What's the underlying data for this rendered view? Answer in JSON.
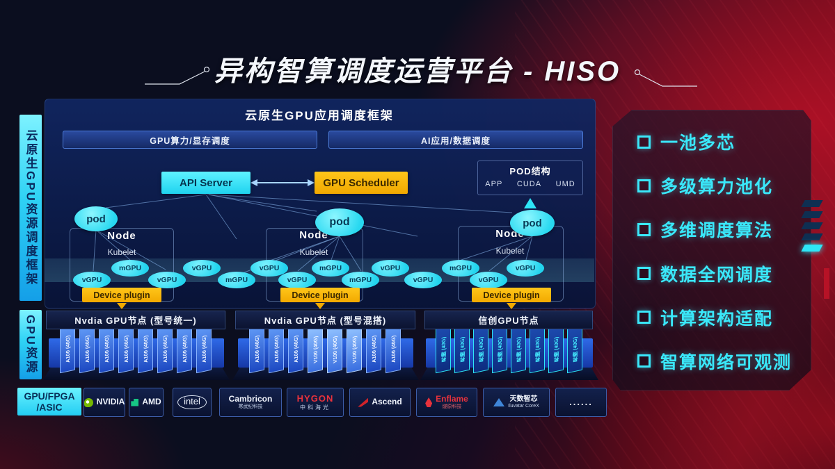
{
  "title": "异构智算调度运营平台 - HISO",
  "left_rails": {
    "top": "云原生GPU资源调度框架",
    "bottom": "GPU资源"
  },
  "framework": {
    "header": "云原生GPU应用调度框架",
    "scheduler_bars": [
      {
        "label": "GPU算力/显存调度"
      },
      {
        "label": "AI应用/数据调度"
      }
    ],
    "api_server": "API Server",
    "gpu_scheduler": "GPU Scheduler",
    "pod_structure": {
      "title": "POD结构",
      "items": [
        "APP",
        "CUDA",
        "UMD"
      ]
    },
    "nodes": [
      {
        "pod": "pod",
        "title": "Node",
        "agent": "Kubelet",
        "plugin": "Device plugin"
      },
      {
        "pod": "pod",
        "title": "Node",
        "agent": "Kubelet",
        "plugin": "Device plugin"
      },
      {
        "pod": "pod",
        "title": "Node",
        "agent": "Kubelet",
        "plugin": "Device plugin"
      }
    ],
    "gpu_instances": [
      "vGPU",
      "mGPU",
      "vGPU",
      "vGPU",
      "mGPU",
      "vGPU",
      "vGPU",
      "mGPU",
      "mGPU",
      "vGPU",
      "vGPU",
      "mGPU",
      "vGPU",
      "vGPU"
    ]
  },
  "node_groups": [
    {
      "bar_label": "Nvdia GPU节点 (型号统一)",
      "cards": [
        "A100 (40G)",
        "A100 (40G)",
        "A100 (40G)",
        "A100 (40G)",
        "A100 (40G)",
        "A100 (40G)",
        "A100 (40G)",
        "A100 (40G)"
      ],
      "style": "blue"
    },
    {
      "bar_label": "Nvdia GPU节点 (型号混搭)",
      "cards": [
        "A100 (40G)",
        "A100 (40G)",
        "A100 (40G)",
        "V100 (40G)",
        "V100 (40G)",
        "V100 (40G)",
        "A100 (40G)",
        "A100 (40G)"
      ],
      "style": "blue"
    },
    {
      "bar_label": "信创GPU节点",
      "cards": [
        "昇腾 (40G)",
        "昇腾 (40G)",
        "昇腾 (40G)",
        "昇腾 (40G)",
        "昇腾 (40G)",
        "昇腾 (40G)",
        "昇腾 (40G)",
        "昇腾 (40G)"
      ],
      "style": "cyan"
    }
  ],
  "vendor_bar": {
    "label_line1": "GPU/FPGA",
    "label_line2": "/ASIC",
    "vendors": [
      {
        "id": "nvidia",
        "name": "NVIDIA"
      },
      {
        "id": "amd",
        "name": "AMD"
      },
      {
        "id": "intel",
        "name": "intel"
      },
      {
        "id": "cambricon",
        "name": "Cambricon",
        "sub": "寒武纪科技"
      },
      {
        "id": "hygon",
        "name": "HYGON",
        "sub": "中科海光"
      },
      {
        "id": "ascend",
        "name": "Ascend"
      },
      {
        "id": "enflame",
        "name": "Enflame",
        "sub": "燧原科技"
      },
      {
        "id": "iluvatar",
        "name": "天数智芯",
        "sub": "Iluvatar CoreX"
      },
      {
        "id": "more",
        "name": "......"
      }
    ]
  },
  "features": {
    "items": [
      "一池多芯",
      "多级算力池化",
      "多维调度算法",
      "数据全网调度",
      "计算架构适配",
      "智算网络可观测"
    ]
  },
  "colors": {
    "cyan_accent": "#38e1f5",
    "yellow_accent": "#f2a900",
    "card_blue": "#2e6ae0",
    "panel_navy": "#102a66",
    "bg_red": "#a81325"
  }
}
